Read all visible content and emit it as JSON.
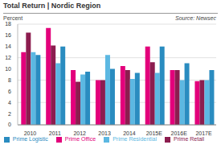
{
  "chart_data": {
    "type": "bar",
    "title": "Total Return | Nordic Region",
    "y_label": "Percent",
    "annotation": "Source: Newsec",
    "categories": [
      "2010",
      "2011",
      "2012",
      "2013",
      "2014",
      "2015E",
      "2016E",
      "2017E"
    ],
    "series": [
      {
        "name": "Prime Office",
        "color": "#e3007b",
        "values": [
          13,
          17.3,
          9.8,
          8,
          10.5,
          14,
          9.8,
          7.8
        ]
      },
      {
        "name": "Prime Retail",
        "color": "#8c1d4f",
        "values": [
          16.5,
          14.2,
          7.7,
          8,
          9.8,
          11.2,
          9.8,
          8
        ]
      },
      {
        "name": "Prime Residential",
        "color": "#5cb8e2",
        "values": [
          13,
          11,
          9,
          12.5,
          8.2,
          9.3,
          8,
          8
        ]
      },
      {
        "name": "Prime Logistic",
        "color": "#2a8cc0",
        "values": [
          12.5,
          14,
          9.5,
          10,
          9.3,
          14,
          11,
          9.8
        ]
      }
    ],
    "ylim": [
      0,
      18
    ],
    "yticks": [
      0,
      2,
      4,
      6,
      8,
      10,
      12,
      14,
      16,
      18
    ],
    "grid": true,
    "legend": "bottom"
  }
}
